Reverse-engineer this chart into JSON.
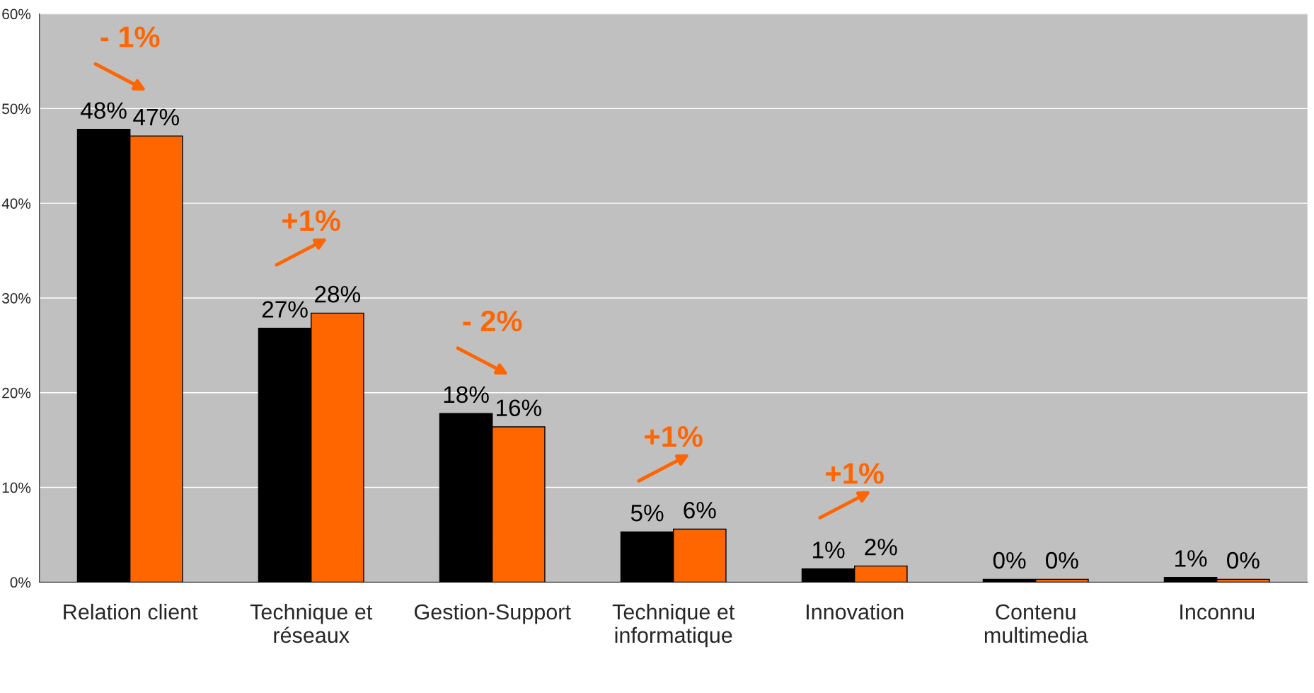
{
  "chart_data": {
    "type": "bar",
    "categories": [
      "Relation client",
      "Technique et\nréseaux",
      "Gestion-Support",
      "Technique et\ninformatique",
      "Innovation",
      "Contenu\nmultimedia",
      "Inconnu"
    ],
    "series": [
      {
        "color": "#000000",
        "values": [
          47.8,
          26.8,
          17.8,
          5.3,
          1.4,
          0.3,
          0.5
        ],
        "value_labels": [
          "48%",
          "27%",
          "18%",
          "5%",
          "1%",
          "0%",
          "1%"
        ]
      },
      {
        "color": "#ff6600",
        "values": [
          47.1,
          28.4,
          16.4,
          5.6,
          1.7,
          0.3,
          0.3
        ],
        "value_labels": [
          "47%",
          "28%",
          "16%",
          "6%",
          "2%",
          "0%",
          "0%"
        ]
      }
    ],
    "ylim": [
      0,
      60
    ],
    "yticks": [
      {
        "value": 0,
        "label": "0%"
      },
      {
        "value": 10,
        "label": "10%"
      },
      {
        "value": 20,
        "label": "20%"
      },
      {
        "value": 30,
        "label": "30%"
      },
      {
        "value": 40,
        "label": "40%"
      },
      {
        "value": 50,
        "label": "50%"
      },
      {
        "value": 60,
        "label": "60%"
      }
    ],
    "grid": "y",
    "annotations": [
      "- 1%",
      "+1%",
      "- 2%",
      "+1%",
      "+1%"
    ]
  }
}
